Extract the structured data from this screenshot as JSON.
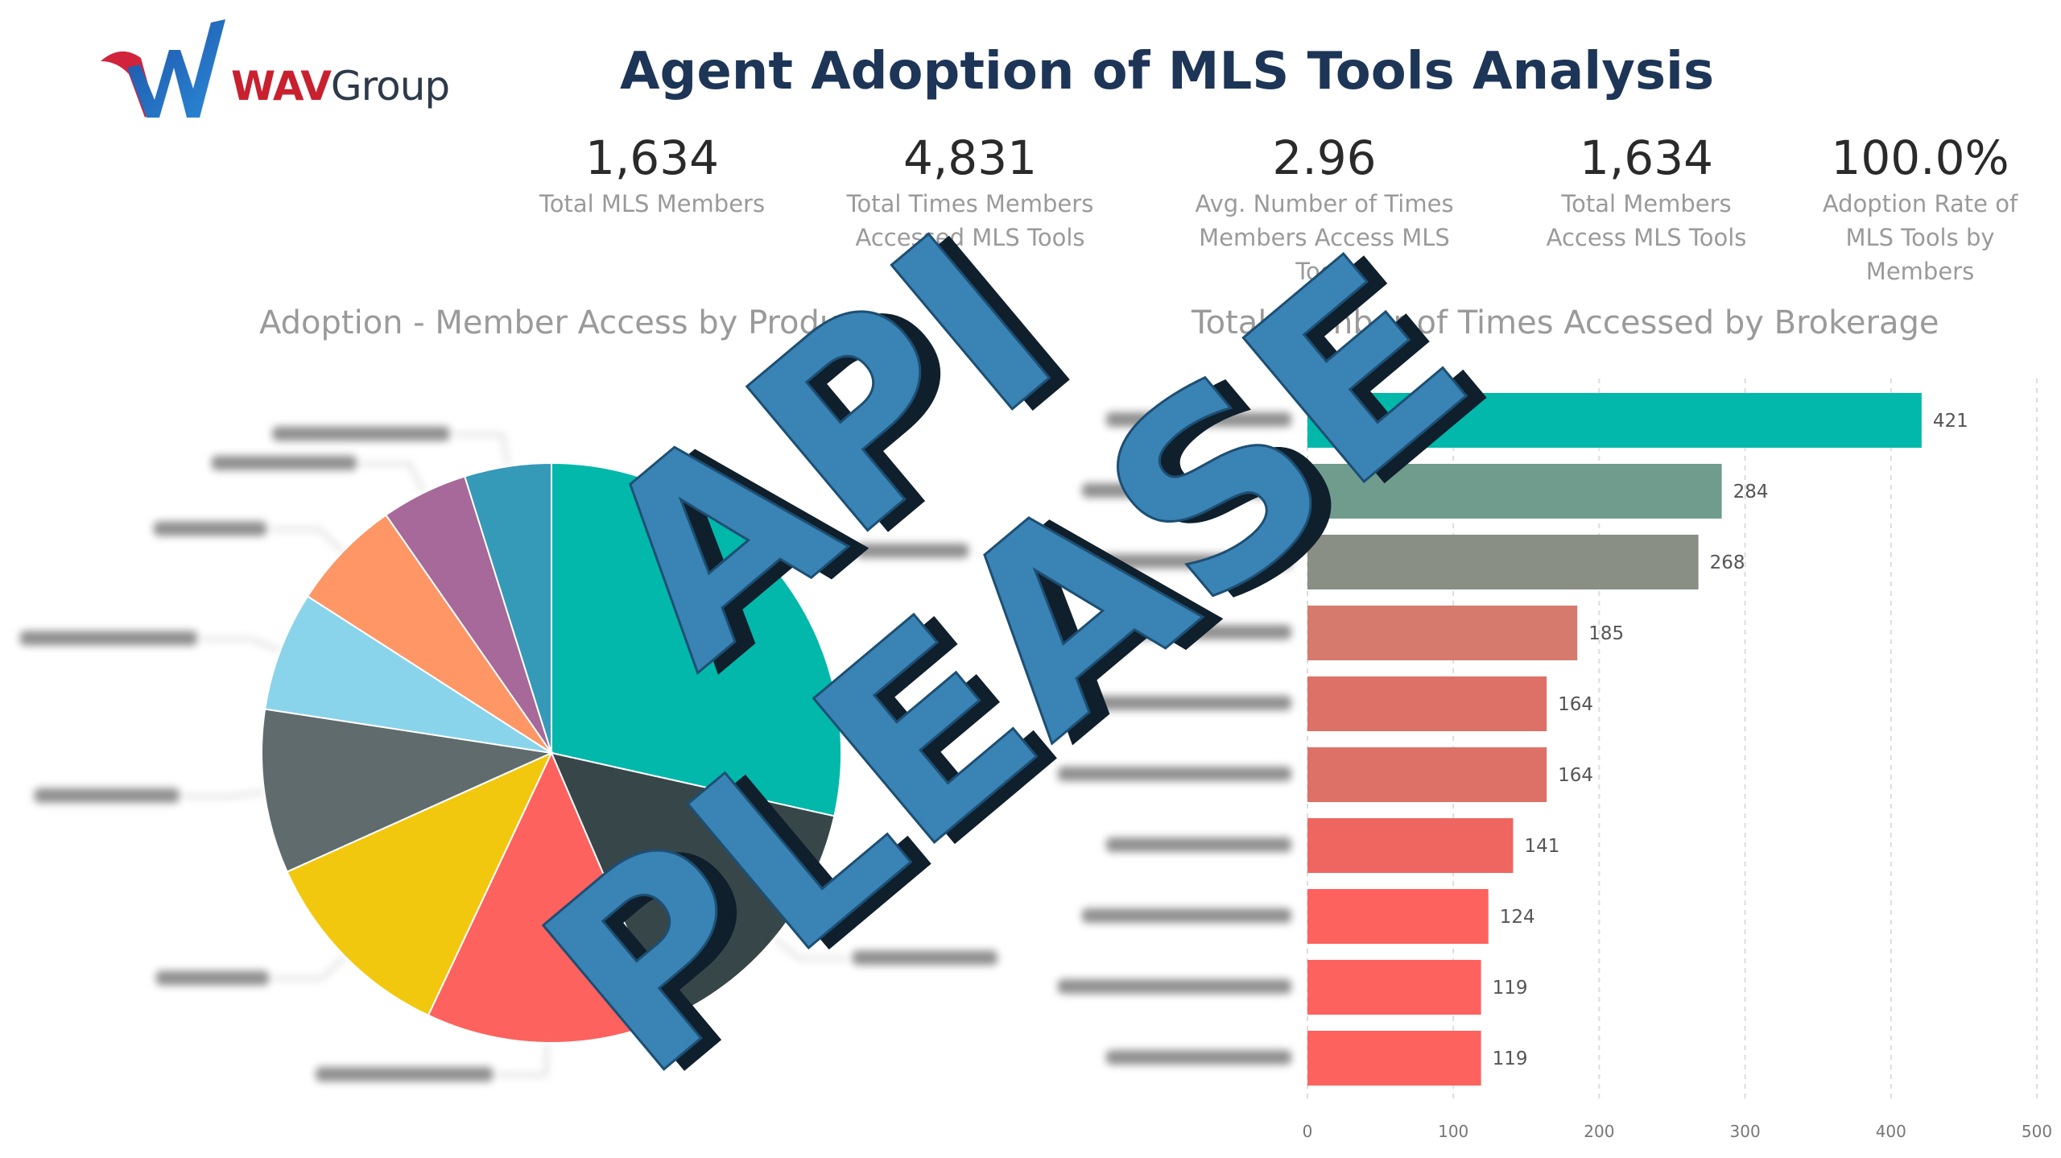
{
  "header": {
    "title": "Agent Adoption of MLS Tools Analysis",
    "logo": {
      "wav": "WAV",
      "group": "Group"
    }
  },
  "kpis": [
    {
      "value": "1,634",
      "label_lines": [
        "Total MLS Members"
      ]
    },
    {
      "value": "4,831",
      "label_lines": [
        "Total Times Members",
        "Accessed MLS Tools"
      ]
    },
    {
      "value": "2.96",
      "label_lines": [
        "Avg. Number of Times",
        "Members Access MLS Tools"
      ]
    },
    {
      "value": "1,634",
      "label_lines": [
        "Total Members",
        "Access MLS Tools"
      ]
    },
    {
      "value": "100.0%",
      "label_lines": [
        "Adoption Rate of",
        "MLS Tools by",
        "Members"
      ]
    }
  ],
  "overlay": {
    "line1": "API",
    "line2": "PLEASE"
  },
  "chart_data": [
    {
      "type": "pie",
      "title": "Adoption - Member Access by Product",
      "labels_visible": false,
      "slices": [
        {
          "value": 26.5,
          "color": "#01b8aa"
        },
        {
          "value": 14.0,
          "color": "#374649"
        },
        {
          "value": 12.5,
          "color": "#fd625e"
        },
        {
          "value": 10.5,
          "color": "#f2c80f"
        },
        {
          "value": 8.5,
          "color": "#5f6b6d"
        },
        {
          "value": 6.2,
          "color": "#8ad4eb"
        },
        {
          "value": 5.8,
          "color": "#fe9666"
        },
        {
          "value": 4.5,
          "color": "#a66999"
        },
        {
          "value": 4.5,
          "color": "#3599b8"
        }
      ]
    },
    {
      "type": "bar",
      "orientation": "horizontal",
      "title": "Total Number of Times Accessed by Brokerage",
      "category_labels_visible": false,
      "values": [
        421,
        284,
        268,
        185,
        164,
        164,
        141,
        124,
        119,
        119
      ],
      "colors": [
        "#01b8aa",
        "#709c8e",
        "#8a8f85",
        "#d67a6e",
        "#dd7168",
        "#dd7168",
        "#ef6660",
        "#fd625e",
        "#fd625e",
        "#fd625e"
      ],
      "xlim": [
        0,
        500
      ],
      "xticks": [
        "0",
        "100",
        "200",
        "300",
        "400",
        "500"
      ]
    }
  ]
}
